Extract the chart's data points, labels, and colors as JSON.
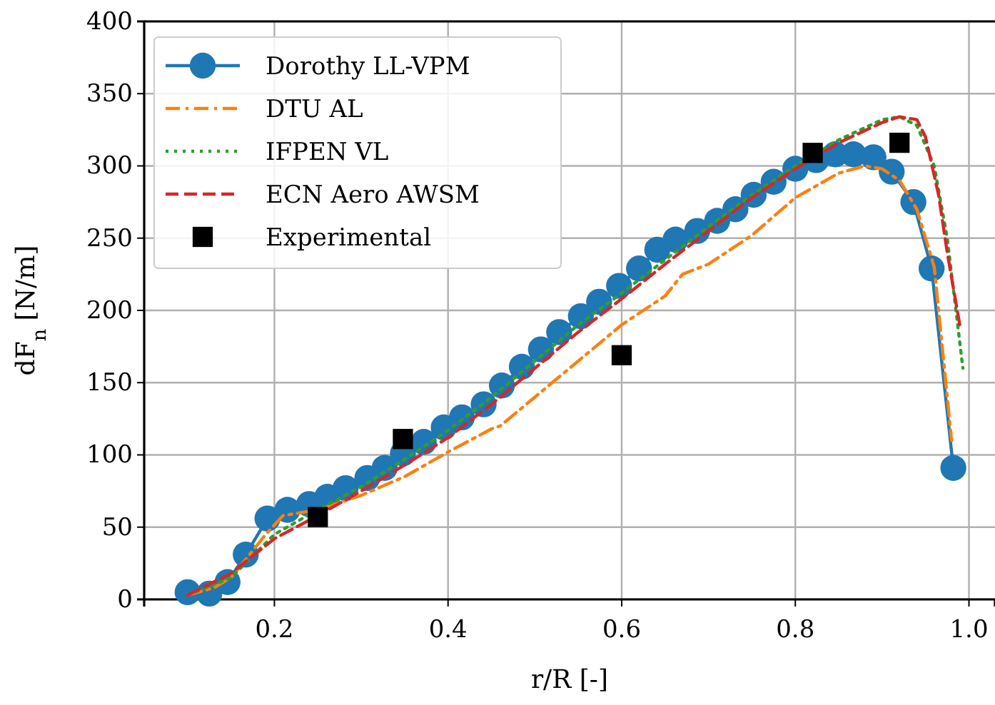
{
  "chart_data": {
    "type": "line",
    "xlabel": "r/R [-]",
    "ylabel": "dF$_{n}$ [N/m]",
    "xlim": [
      0.05,
      1.03
    ],
    "xticks": [
      {
        "value": 0.2,
        "label": "0.2"
      },
      {
        "value": 0.4,
        "label": "0.4"
      },
      {
        "value": 0.6,
        "label": "0.6"
      },
      {
        "value": 0.8,
        "label": "0.8"
      },
      {
        "value": 1.0,
        "label": "1.0"
      }
    ],
    "ylim": [
      0,
      400
    ],
    "yticks": [
      0,
      50,
      100,
      150,
      200,
      250,
      300,
      350,
      400
    ],
    "grid": true,
    "legend": "top left",
    "series": [
      {
        "name": "Dorothy LL-VPM",
        "color": "#1f77b4",
        "marker": "circle",
        "line_style": "solid",
        "x": [
          0.1,
          0.125,
          0.146,
          0.167,
          0.192,
          0.215,
          0.24,
          0.261,
          0.282,
          0.307,
          0.327,
          0.348,
          0.372,
          0.395,
          0.416,
          0.441,
          0.462,
          0.485,
          0.507,
          0.528,
          0.553,
          0.574,
          0.597,
          0.62,
          0.641,
          0.662,
          0.687,
          0.71,
          0.731,
          0.752,
          0.775,
          0.8,
          0.824,
          0.846,
          0.867,
          0.89,
          0.911,
          0.936,
          0.957,
          0.982
        ],
        "values": [
          5,
          4,
          12,
          31,
          56,
          62,
          66,
          71,
          77,
          84,
          91,
          101,
          109,
          119,
          126,
          135,
          148,
          161,
          173,
          185,
          196,
          206,
          217,
          229,
          242,
          249,
          255,
          262,
          270,
          280,
          289,
          298,
          304,
          308,
          308,
          306,
          296,
          275,
          229,
          91
        ]
      },
      {
        "name": "DTU AL",
        "color": "#ff7f0e",
        "marker": "none",
        "line_style": "dashdot",
        "x": [
          0.1,
          0.13,
          0.15,
          0.17,
          0.19,
          0.21,
          0.25,
          0.3,
          0.35,
          0.4,
          0.45,
          0.46,
          0.5,
          0.55,
          0.6,
          0.65,
          0.67,
          0.7,
          0.75,
          0.8,
          0.85,
          0.88,
          0.9,
          0.92,
          0.94,
          0.96,
          0.97,
          0.98
        ],
        "values": [
          3,
          8,
          15,
          30,
          45,
          58,
          62,
          72,
          85,
          102,
          118,
          120,
          140,
          165,
          190,
          210,
          225,
          232,
          252,
          278,
          295,
          300,
          298,
          290,
          270,
          230,
          170,
          110
        ]
      },
      {
        "name": "IFPEN VL",
        "color": "#2ca02c",
        "marker": "none",
        "line_style": "dotted",
        "x": [
          0.1,
          0.15,
          0.2,
          0.25,
          0.3,
          0.35,
          0.4,
          0.45,
          0.5,
          0.55,
          0.6,
          0.65,
          0.7,
          0.75,
          0.8,
          0.85,
          0.9,
          0.92,
          0.94,
          0.96,
          0.975,
          0.985,
          0.993
        ],
        "values": [
          3,
          15,
          45,
          62,
          78,
          97,
          117,
          140,
          165,
          190,
          212,
          235,
          258,
          280,
          300,
          318,
          332,
          334,
          328,
          300,
          250,
          200,
          160
        ]
      },
      {
        "name": "ECN Aero AWSM",
        "color": "#d62728",
        "marker": "none",
        "line_style": "dashed",
        "x": [
          0.1,
          0.15,
          0.2,
          0.25,
          0.3,
          0.35,
          0.4,
          0.45,
          0.5,
          0.55,
          0.6,
          0.65,
          0.7,
          0.75,
          0.8,
          0.85,
          0.9,
          0.92,
          0.94,
          0.95,
          0.965,
          0.975,
          0.99
        ],
        "values": [
          3,
          18,
          42,
          58,
          75,
          93,
          112,
          135,
          160,
          185,
          208,
          232,
          255,
          278,
          298,
          316,
          330,
          334,
          332,
          320,
          280,
          240,
          188
        ]
      },
      {
        "name": "Experimental",
        "type": "scatter",
        "color": "#000000",
        "marker": "square",
        "x": [
          0.25,
          0.348,
          0.6,
          0.82,
          0.92
        ],
        "values": [
          57,
          111,
          169,
          309,
          316
        ]
      }
    ]
  }
}
